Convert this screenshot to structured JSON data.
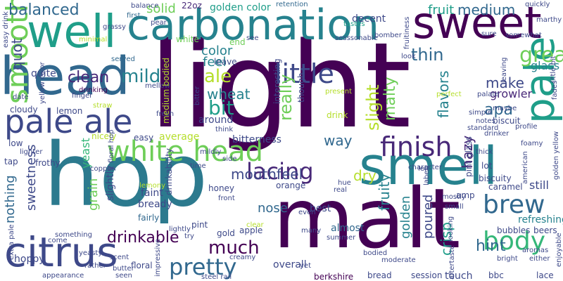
{
  "word_cloud": {
    "palette": {
      "dark_purple": "#440154",
      "purple": "#482878",
      "indigo": "#3e4989",
      "blue": "#31688e",
      "teal": "#26828e",
      "green_teal": "#1f9e89",
      "green": "#35b779",
      "light_green": "#6ece58",
      "lime": "#b5de2b",
      "yellow": "#fde725"
    },
    "words": [
      "light",
      "hop",
      "malt",
      "head",
      "sweet",
      "smell",
      "carbonation",
      "well",
      "citrus",
      "pale ale",
      "white head",
      "pale",
      "smooth",
      "finish",
      "little",
      "body",
      "lacing",
      "brew",
      "pretty",
      "much",
      "balanced",
      "fruit",
      "medium",
      "golden color",
      "great",
      "clean",
      "mild",
      "drinkable",
      "ale",
      "bit",
      "wheat",
      "really",
      "slight",
      "quot",
      "thin",
      "hint",
      "apa",
      "mouthfeel",
      "nose",
      "way",
      "fruity",
      "malty",
      "flavors",
      "hazy",
      "crisp",
      "poured",
      "golden",
      "grain",
      "sweetness",
      "nothing",
      "yeast",
      "dry",
      "make",
      "growler",
      "glass",
      "color",
      "feel",
      "solid",
      "decent",
      "balance",
      "retention",
      "tastes",
      "quickly",
      "22oz",
      "first",
      "served",
      "end",
      "leave",
      "quite",
      "white",
      "cloudy",
      "lemon",
      "fresh",
      "easy",
      "frothy",
      "copper",
      "tap",
      "low",
      "date",
      "finger",
      "drinking",
      "straw",
      "lemony",
      "faint",
      "bready",
      "fairly",
      "pint",
      "nicely",
      "slightly",
      "average",
      "creamy",
      "bitterness",
      "around",
      "interesting",
      "drink",
      "though",
      "orange",
      "apple",
      "almost",
      "best",
      "gold",
      "honey",
      "clear",
      "front",
      "floral hop",
      "drinkability",
      "overall",
      "steel rail",
      "berkshire",
      "bread",
      "touch",
      "bbc",
      "lace",
      "session",
      "yet",
      "moderate",
      "bodied",
      "refreshing",
      "bubbles",
      "beers",
      "still",
      "caramel",
      "american",
      "biscuity",
      "biscuit",
      "thick",
      "lot",
      "amp",
      "pint glass",
      "character",
      "mostly",
      "small",
      "palate",
      "standard",
      "perfect",
      "present",
      "drinker",
      "profile",
      "aromas",
      "bright",
      "either",
      "enjoyable",
      "hoppy",
      "come",
      "something",
      "extra pale",
      "appearance",
      "rather",
      "scent",
      "seen",
      "floral",
      "impressive",
      "try",
      "lightly",
      "many",
      "summer",
      "look",
      "maybe",
      "left",
      "label",
      "hue",
      "even",
      "real",
      "simple",
      "notes",
      "somewhat",
      "sure",
      "bomber",
      "sesssonable",
      "see",
      "marthy",
      "pear",
      "grassy",
      "minimal",
      "mellow",
      "bitter",
      "think",
      "mildly",
      "side",
      "time",
      "leaving",
      "fades",
      "little bit",
      "golden yellow",
      "yellow color",
      "easy drink",
      "medium bodied",
      "lighter",
      "foamy",
      "yeasty",
      "butter",
      "fruitiness",
      "aftertaste",
      "looking"
    ]
  }
}
